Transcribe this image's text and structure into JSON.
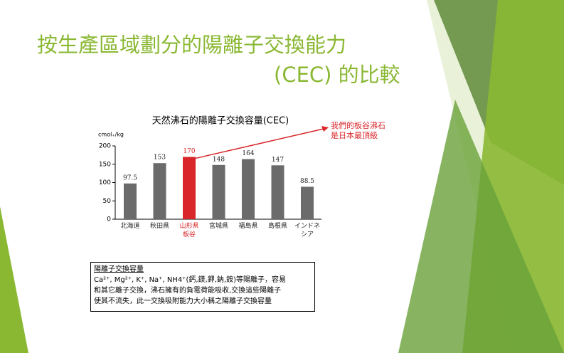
{
  "slide": {
    "title_line1": "按生產區域劃分的陽離子交換能力",
    "title_line2": "(CEC) 的比較"
  },
  "chart_data": {
    "type": "bar",
    "title": "天然沸石的陽離子交換容量(CEC)",
    "y_label": "cmol₊/kg",
    "categories": [
      "北海道",
      "秋田県",
      "山形県\n板谷",
      "宮城県",
      "福島県",
      "島根県",
      "インドネシア"
    ],
    "values": [
      97.5,
      153,
      170,
      148,
      164,
      147,
      88.5
    ],
    "colors": [
      "#6b6b6b",
      "#6b6b6b",
      "#d9262a",
      "#6b6b6b",
      "#6b6b6b",
      "#6b6b6b",
      "#6b6b6b"
    ],
    "label_colors": [
      "#222222",
      "#222222",
      "#d9262a",
      "#222222",
      "#222222",
      "#222222",
      "#222222"
    ],
    "ylim": [
      0,
      200
    ],
    "yticks": [
      0,
      50,
      100,
      150,
      200
    ],
    "annotation": "我們的板谷沸石\n是日本最頂級",
    "annotation_color": "#d9262a"
  },
  "note": {
    "title": "陽離子交換容量",
    "lines": [
      "Ca²⁺, Mg²⁺, K⁺, Na⁺, NH4⁺(鈣,鎂,鉀,鈉,銨)等陽離子，容易",
      "和其它離子交換，沸石擁有的負電荷能吸收,交換這些陽離子",
      "使其不流失，此一交換吸附能力大小稱之陽離子交換容量"
    ]
  }
}
